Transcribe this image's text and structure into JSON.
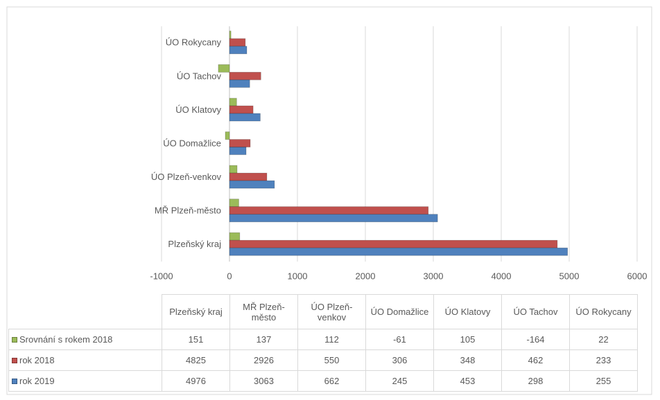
{
  "chart_data": {
    "type": "hbar",
    "categories": [
      "Plzeňský kraj",
      "MŘ Plzeň-město",
      "ÚO Plzeň-venkov",
      "ÚO Domažlice",
      "ÚO Klatovy",
      "ÚO Tachov",
      "ÚO Rokycany"
    ],
    "series": [
      {
        "name": "Srovnání s rokem 2018",
        "color": "#9bbb59",
        "values": [
          151,
          137,
          112,
          -61,
          105,
          -164,
          22
        ]
      },
      {
        "name": "rok 2018",
        "color": "#c0504d",
        "values": [
          4825,
          2926,
          550,
          306,
          348,
          462,
          233
        ]
      },
      {
        "name": "rok 2019",
        "color": "#4f81bd",
        "values": [
          4976,
          3063,
          662,
          245,
          453,
          298,
          255
        ]
      }
    ],
    "xlim": [
      -1000,
      6000
    ],
    "xticks": [
      -1000,
      0,
      1000,
      2000,
      3000,
      4000,
      5000,
      6000
    ],
    "grid": true
  }
}
